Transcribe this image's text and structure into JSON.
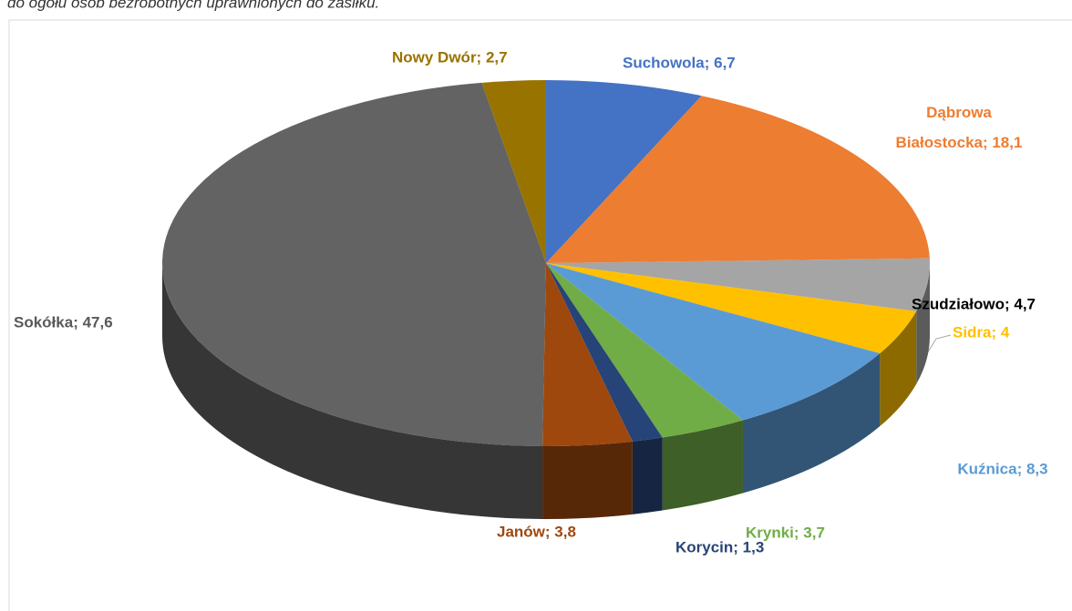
{
  "caption": "do ogółu osób bezrobotnych uprawnionych do zasiłku.",
  "chart_data": {
    "type": "pie3d",
    "values": [
      6.7,
      18.1,
      4.7,
      4,
      8.3,
      3.7,
      1.3,
      3.8,
      47.6,
      2.7
    ],
    "value_labels": [
      "Suchowola; 6,7",
      "Dąbrowa Białostocka; 18,1",
      "Szudziałowo; 4,7",
      "Sidra; 4",
      "Kuźnica; 8,3",
      "Krynki; 3,7",
      "Korycin; 1,3",
      "Janów; 3,8",
      "Sokółka; 47,6",
      "Nowy Dwór; 2,7"
    ],
    "colors": [
      "#4472c4",
      "#ed7d31",
      "#a5a5a5",
      "#ffc000",
      "#5b9bd5",
      "#70ad47",
      "#264478",
      "#9e480e",
      "#636363",
      "#997300"
    ],
    "label_colors": [
      "#4472c4",
      "#ed7d31",
      "#000000",
      "#ffc000",
      "#5b9bd5",
      "#70ad47",
      "#264478",
      "#9e480e",
      "#595959",
      "#997300"
    ]
  }
}
